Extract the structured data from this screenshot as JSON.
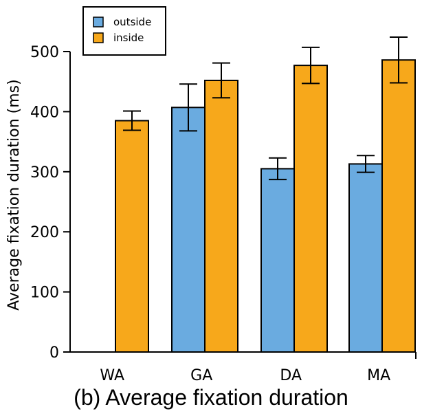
{
  "chart_data": {
    "type": "bar",
    "categories": [
      "WA",
      "GA",
      "DA",
      "MA"
    ],
    "series": [
      {
        "name": "outside",
        "values": [
          null,
          407,
          305,
          313
        ],
        "errors": [
          null,
          39,
          18,
          14
        ]
      },
      {
        "name": "inside",
        "values": [
          385,
          452,
          477,
          486
        ],
        "errors": [
          16,
          29,
          30,
          38
        ]
      }
    ],
    "colors": {
      "outside": "#6aabe0",
      "inside": "#f7a81b"
    },
    "title": "",
    "xlabel": "",
    "ylabel": "Average fixation duration (ms)",
    "ylim": [
      0,
      500
    ],
    "yticks": [
      0,
      100,
      200,
      300,
      400,
      500
    ],
    "legend_position": "top-left",
    "grid": false
  },
  "caption": "(b)  Average fixation duration"
}
